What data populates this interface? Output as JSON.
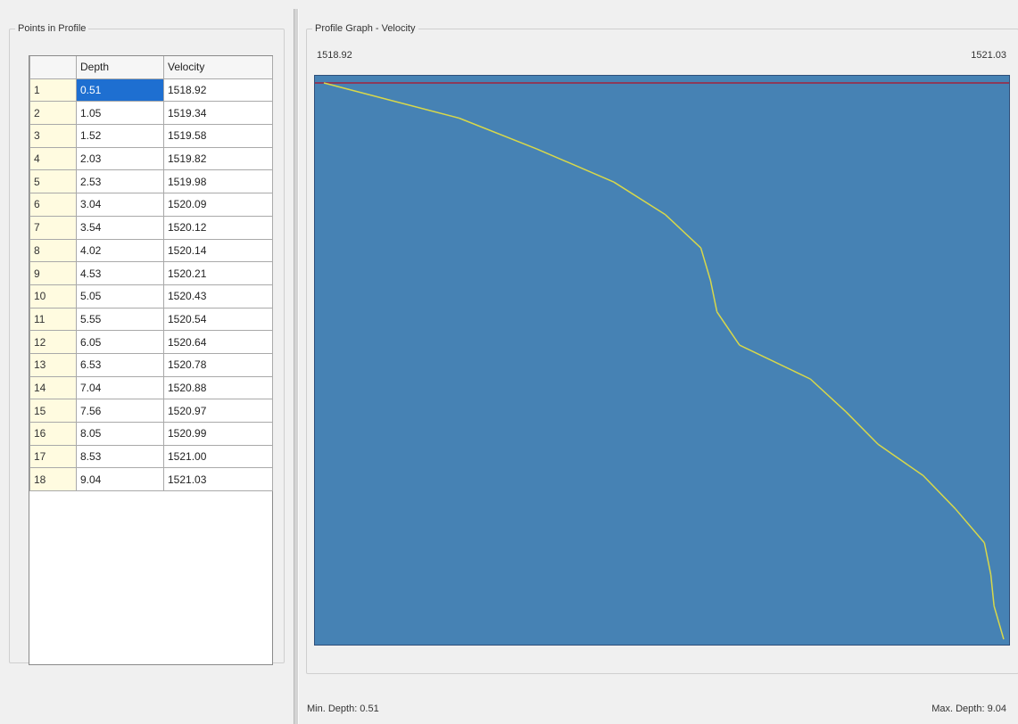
{
  "points_panel": {
    "title": "Points in Profile",
    "columns": [
      "",
      "Depth",
      "Velocity"
    ],
    "rows": [
      {
        "n": "1",
        "depth": "0.51",
        "velocity": "1518.92"
      },
      {
        "n": "2",
        "depth": "1.05",
        "velocity": "1519.34"
      },
      {
        "n": "3",
        "depth": "1.52",
        "velocity": "1519.58"
      },
      {
        "n": "4",
        "depth": "2.03",
        "velocity": "1519.82"
      },
      {
        "n": "5",
        "depth": "2.53",
        "velocity": "1519.98"
      },
      {
        "n": "6",
        "depth": "3.04",
        "velocity": "1520.09"
      },
      {
        "n": "7",
        "depth": "3.54",
        "velocity": "1520.12"
      },
      {
        "n": "8",
        "depth": "4.02",
        "velocity": "1520.14"
      },
      {
        "n": "9",
        "depth": "4.53",
        "velocity": "1520.21"
      },
      {
        "n": "10",
        "depth": "5.05",
        "velocity": "1520.43"
      },
      {
        "n": "11",
        "depth": "5.55",
        "velocity": "1520.54"
      },
      {
        "n": "12",
        "depth": "6.05",
        "velocity": "1520.64"
      },
      {
        "n": "13",
        "depth": "6.53",
        "velocity": "1520.78"
      },
      {
        "n": "14",
        "depth": "7.04",
        "velocity": "1520.88"
      },
      {
        "n": "15",
        "depth": "7.56",
        "velocity": "1520.97"
      },
      {
        "n": "16",
        "depth": "8.05",
        "velocity": "1520.99"
      },
      {
        "n": "17",
        "depth": "8.53",
        "velocity": "1521.00"
      },
      {
        "n": "18",
        "depth": "9.04",
        "velocity": "1521.03"
      }
    ],
    "selected_row": 0
  },
  "graph_panel": {
    "title": "Profile Graph - Velocity",
    "velocity_min_label": "1518.92",
    "velocity_max_label": "1521.03",
    "min_depth_label": "Min. Depth: 0.51",
    "max_depth_label": "Max. Depth: 9.04"
  },
  "colors": {
    "plot_background": "#4682b4",
    "profile_line": "#d8d84a",
    "top_line": "#8b3a5a",
    "selected_cell": "#1e6fd1",
    "row_header": "#fffbe0"
  },
  "chart_data": {
    "type": "line",
    "x_label": "",
    "y_label": "",
    "x": [
      1518.92,
      1519.34,
      1519.58,
      1519.82,
      1519.98,
      1520.09,
      1520.12,
      1520.14,
      1520.21,
      1520.43,
      1520.54,
      1520.64,
      1520.78,
      1520.88,
      1520.97,
      1520.99,
      1521.0,
      1521.03
    ],
    "y": [
      0.51,
      1.05,
      1.52,
      2.03,
      2.53,
      3.04,
      3.54,
      4.02,
      4.53,
      5.05,
      5.55,
      6.05,
      6.53,
      7.04,
      7.56,
      8.05,
      8.53,
      9.04
    ],
    "xlim": [
      1518.92,
      1521.03
    ],
    "ylim": [
      0.51,
      9.04
    ],
    "y_inverted": true,
    "grid": false
  }
}
